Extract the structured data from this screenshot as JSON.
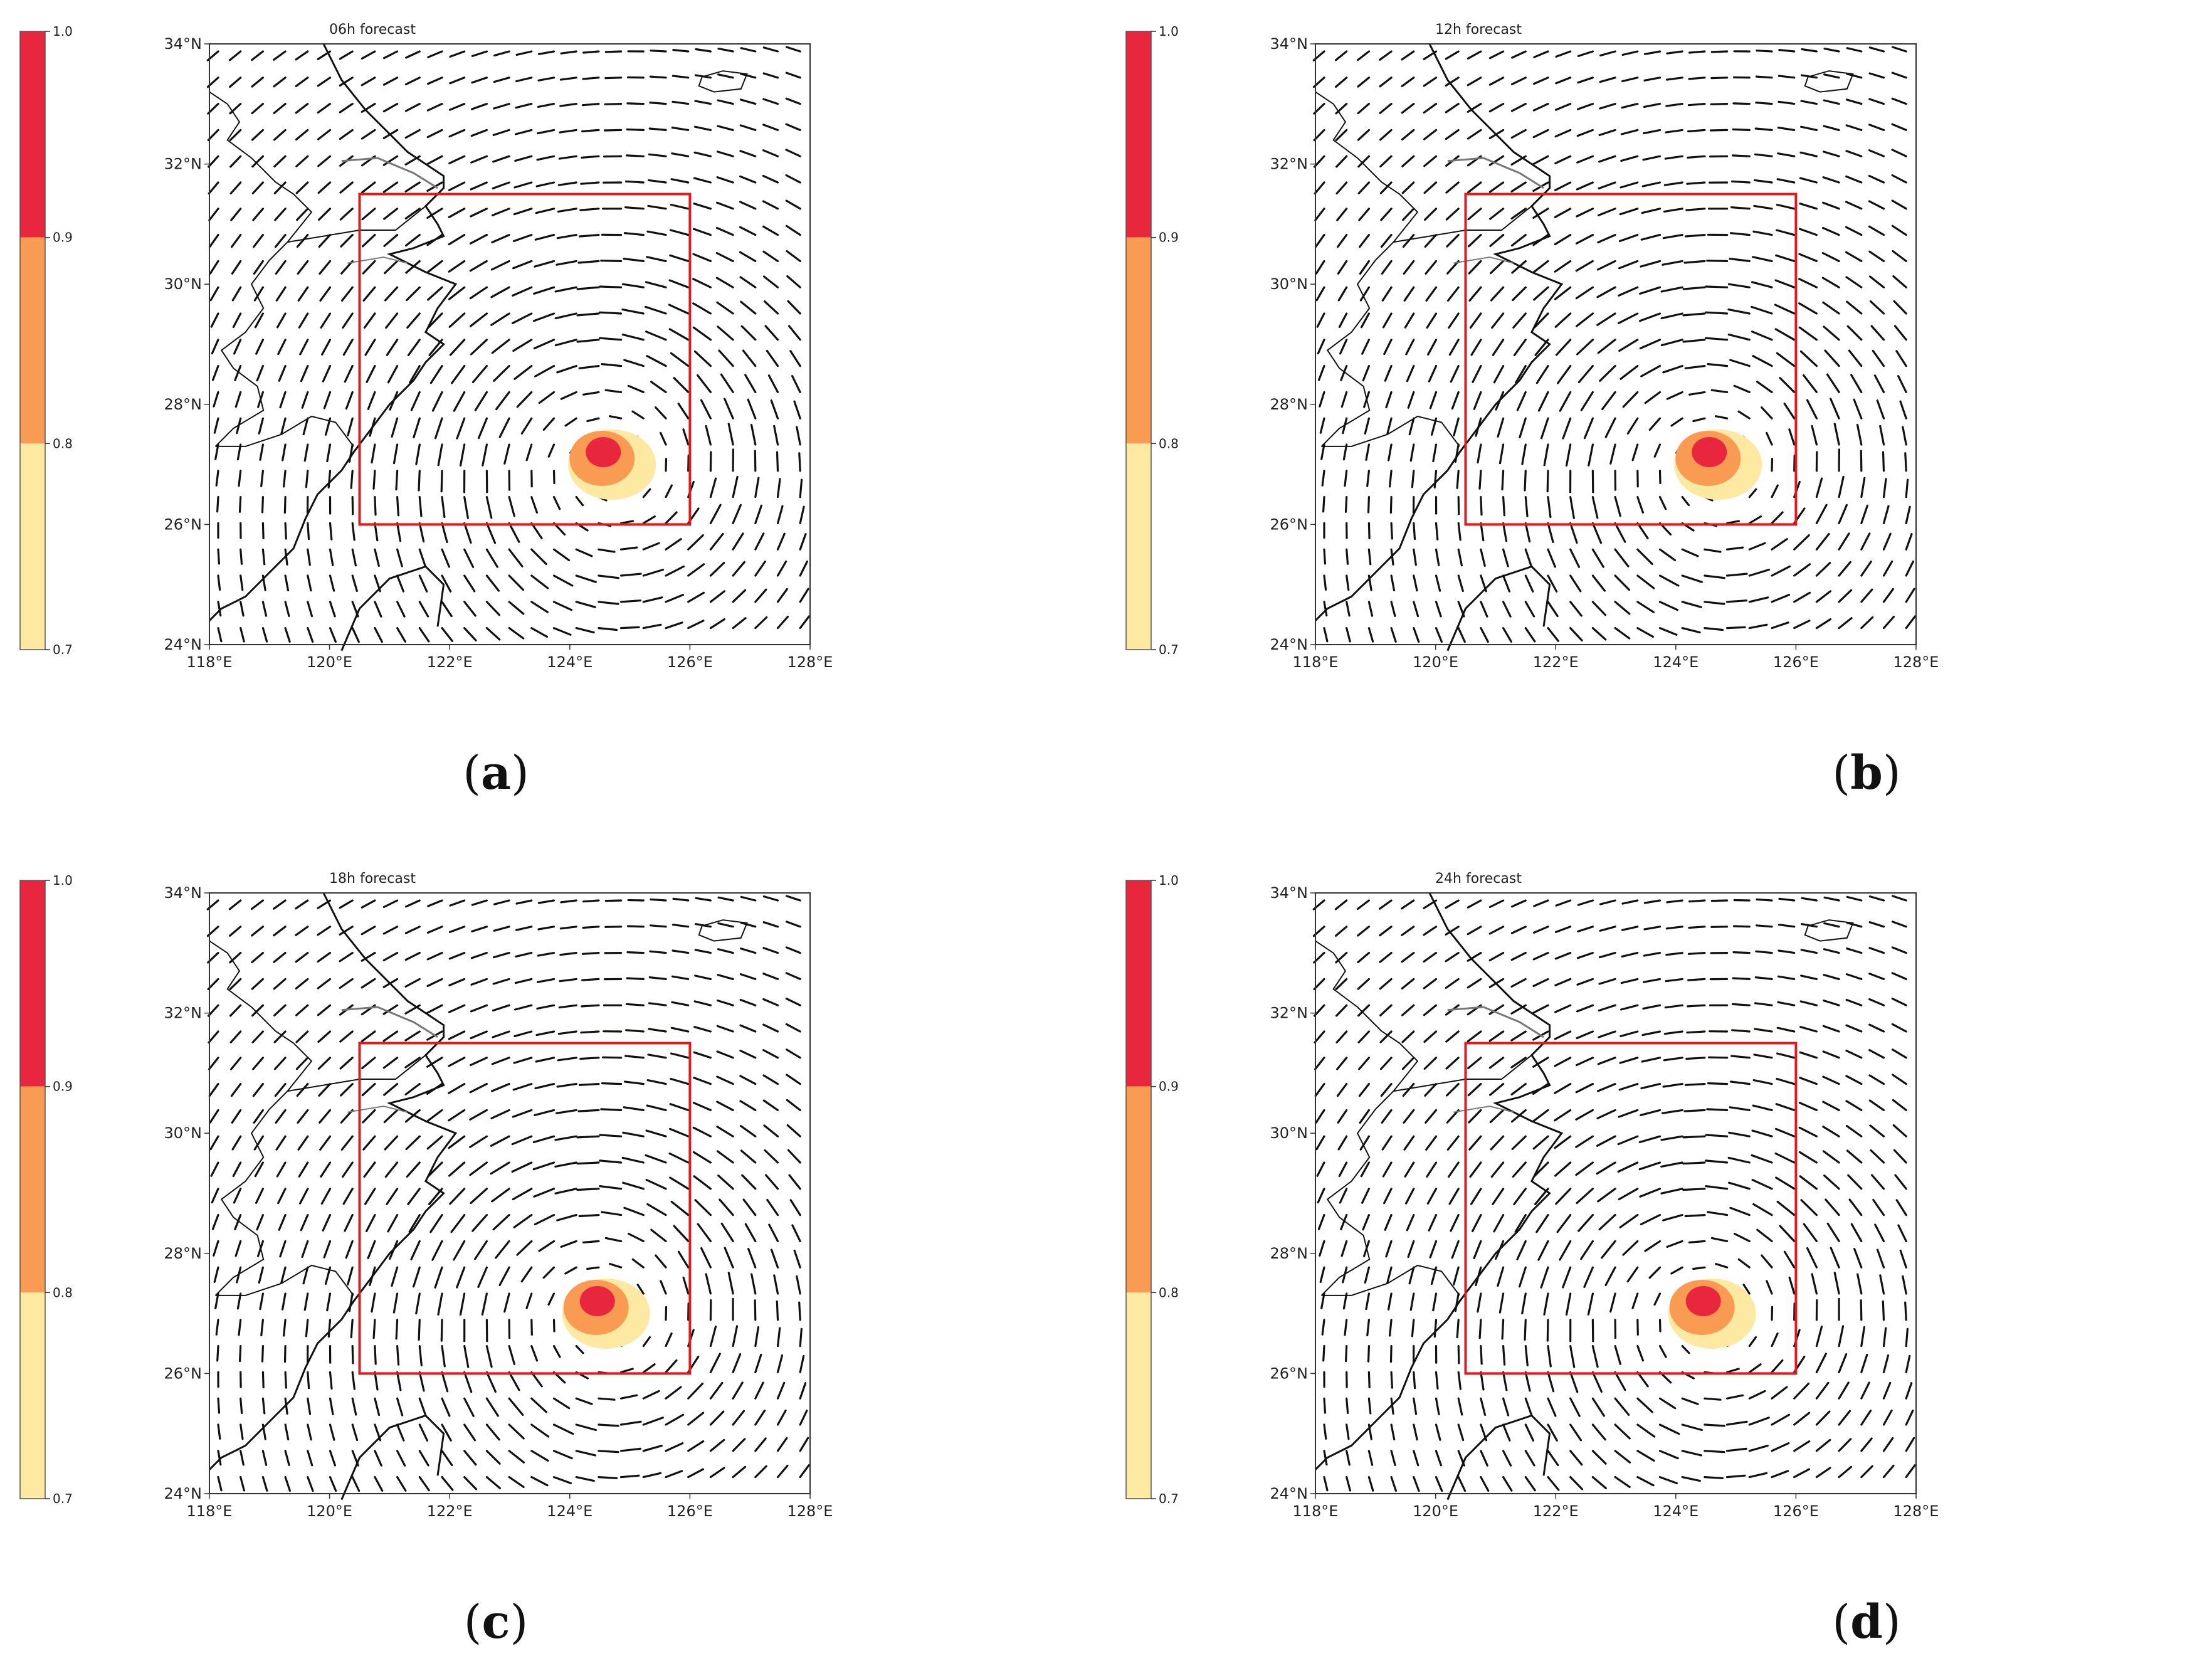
{
  "figure": {
    "colorbar": {
      "ticks": [
        "1.0",
        "0.9",
        "0.8",
        "0.7"
      ],
      "bands": [
        {
          "from": 0.9,
          "to": 1.0,
          "color": "#e8263e"
        },
        {
          "from": 0.8,
          "to": 0.9,
          "color": "#f99b52"
        },
        {
          "from": 0.7,
          "to": 0.8,
          "color": "#fde9a1"
        }
      ]
    },
    "lat_labels": [
      "34°N",
      "32°N",
      "30°N",
      "28°N",
      "26°N",
      "24°N"
    ],
    "lon_labels": [
      "118°E",
      "120°E",
      "122°E",
      "124°E",
      "126°E",
      "128°E"
    ],
    "extent": {
      "lon": [
        118,
        128
      ],
      "lat": [
        24,
        34
      ]
    },
    "region_box": {
      "lon": [
        120.5,
        126.0
      ],
      "lat": [
        26.0,
        31.5
      ],
      "color": "#e31a1c"
    },
    "panels": [
      {
        "title": "06h forecast",
        "caption": "a",
        "cyclone_center": {
          "lon": 124.6,
          "lat": 27.1
        }
      },
      {
        "title": "12h forecast",
        "caption": "b",
        "cyclone_center": {
          "lon": 124.6,
          "lat": 27.1
        }
      },
      {
        "title": "18h forecast",
        "caption": "c",
        "cyclone_center": {
          "lon": 124.5,
          "lat": 27.1
        }
      },
      {
        "title": "24h forecast",
        "caption": "d",
        "cyclone_center": {
          "lon": 124.5,
          "lat": 27.1
        }
      }
    ]
  }
}
